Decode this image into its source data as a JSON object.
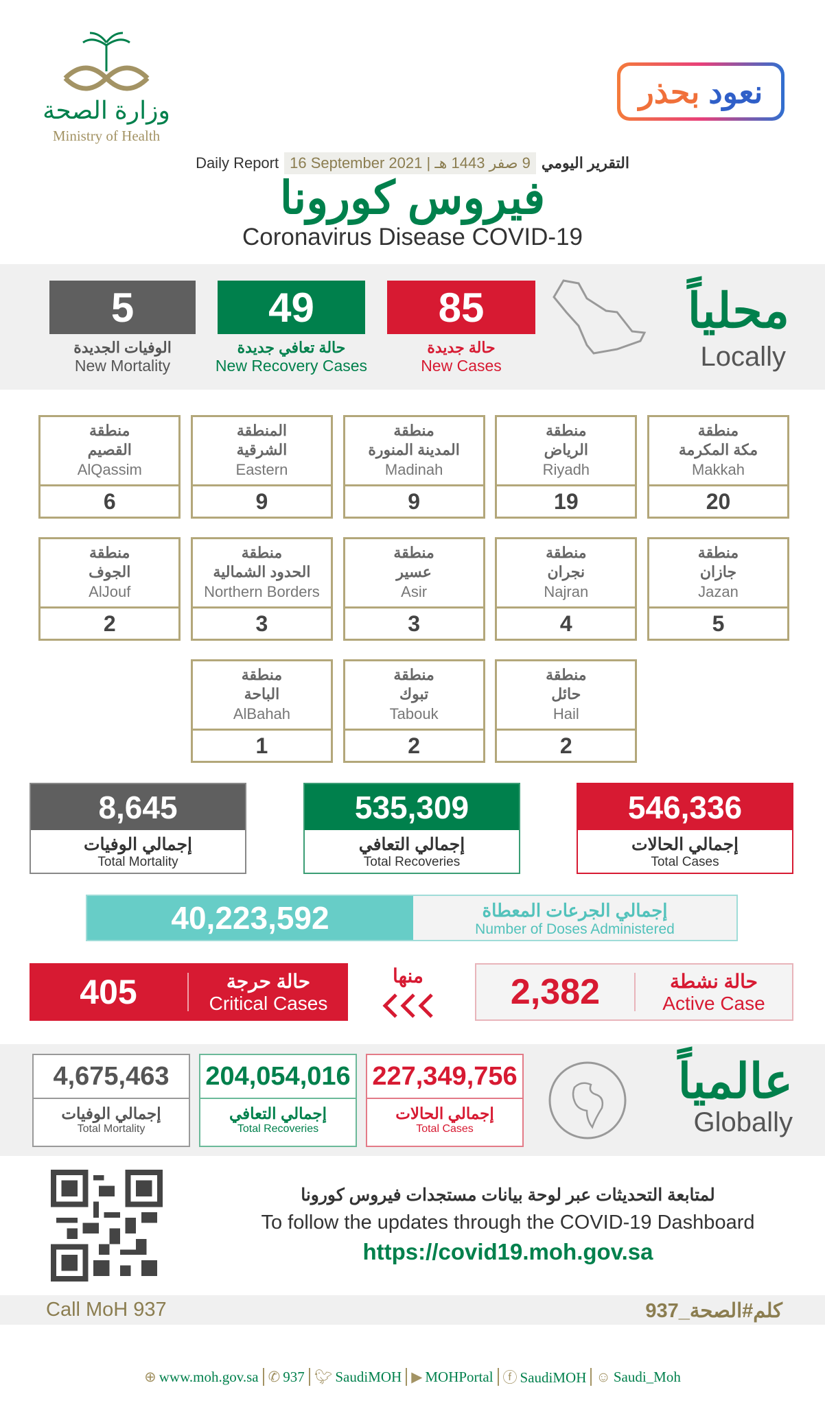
{
  "header": {
    "logo_ar": "وزارة الصحة",
    "logo_en": "Ministry of Health",
    "badge_part1": "نعود",
    "badge_part2": "بحذر",
    "daily_report_en": "Daily Report",
    "date_gregorian": "16 September 2021",
    "date_hijri": "9 صفر 1443 هـ",
    "daily_report_ar": "التقرير اليومي",
    "title_ar": "فيروس كورونا",
    "title_en": "Coronavirus Disease COVID-19"
  },
  "locally": {
    "heading_ar": "محلياً",
    "heading_en": "Locally",
    "new_mortality": {
      "value": "5",
      "label_ar": "الوفيات الجديدة",
      "label_en": "New Mortality"
    },
    "new_recovery": {
      "value": "49",
      "label_ar": "حالة تعافي جديدة",
      "label_en": "New Recovery Cases"
    },
    "new_cases": {
      "value": "85",
      "label_ar": "حالة جديدة",
      "label_en": "New Cases"
    }
  },
  "regions": [
    {
      "prefix": "منطقة",
      "name_ar": "مكة المكرمة",
      "name_en": "Makkah",
      "value": "20"
    },
    {
      "prefix": "منطقة",
      "name_ar": "الرياض",
      "name_en": "Riyadh",
      "value": "19"
    },
    {
      "prefix": "منطقة",
      "name_ar": "المدينة المنورة",
      "name_en": "Madinah",
      "value": "9"
    },
    {
      "prefix": "المنطقة",
      "name_ar": "الشرقية",
      "name_en": "Eastern",
      "value": "9"
    },
    {
      "prefix": "منطقة",
      "name_ar": "القصيم",
      "name_en": "AlQassim",
      "value": "6"
    },
    {
      "prefix": "منطقة",
      "name_ar": "جازان",
      "name_en": "Jazan",
      "value": "5"
    },
    {
      "prefix": "منطقة",
      "name_ar": "نجران",
      "name_en": "Najran",
      "value": "4"
    },
    {
      "prefix": "منطقة",
      "name_ar": "عسير",
      "name_en": "Asir",
      "value": "3"
    },
    {
      "prefix": "منطقة",
      "name_ar": "الحدود الشمالية",
      "name_en": "Northern Borders",
      "value": "3"
    },
    {
      "prefix": "منطقة",
      "name_ar": "الجوف",
      "name_en": "AlJouf",
      "value": "2"
    },
    {
      "prefix": "منطقة",
      "name_ar": "حائل",
      "name_en": "Hail",
      "value": "2"
    },
    {
      "prefix": "منطقة",
      "name_ar": "تبوك",
      "name_en": "Tabouk",
      "value": "2"
    },
    {
      "prefix": "منطقة",
      "name_ar": "الباحة",
      "name_en": "AlBahah",
      "value": "1"
    }
  ],
  "totals": {
    "mortality": {
      "value": "8,645",
      "label_ar": "إجمالي الوفيات",
      "label_en": "Total Mortality"
    },
    "recoveries": {
      "value": "535,309",
      "label_ar": "إجمالي التعافي",
      "label_en": "Total Recoveries"
    },
    "cases": {
      "value": "546,336",
      "label_ar": "إجمالي الحالات",
      "label_en": "Total Cases"
    }
  },
  "doses": {
    "value": "40,223,592",
    "label_ar": "إجمالي الجرعات المعطاة",
    "label_en": "Number of Doses Administered"
  },
  "critical": {
    "value": "405",
    "label_ar": "حالة حرجة",
    "label_en": "Critical Cases"
  },
  "of_which": "منها",
  "active": {
    "value": "2,382",
    "label_ar": "حالة نشطة",
    "label_en": "Active Case"
  },
  "globally": {
    "heading_ar": "عالمياً",
    "heading_en": "Globally",
    "mortality": {
      "value": "4,675,463",
      "label_ar": "إجمالي الوفيات",
      "label_en": "Total Mortality"
    },
    "recoveries": {
      "value": "204,054,016",
      "label_ar": "إجمالي التعافي",
      "label_en": "Total Recoveries"
    },
    "cases": {
      "value": "227,349,756",
      "label_ar": "إجمالي الحالات",
      "label_en": "Total Cases"
    }
  },
  "dashboard": {
    "text_ar": "لمتابعة التحديثات عبر لوحة بيانات مستجدات فيروس كورونا",
    "text_en": "To follow the updates through the COVID-19 Dashboard",
    "url": "https://covid19.moh.gov.sa"
  },
  "call": {
    "en": "Call MoH 937",
    "ar": "كلم#الصحة_937"
  },
  "footer": [
    {
      "icon": "globe-icon",
      "label": "www.moh.gov.sa"
    },
    {
      "icon": "phone-icon",
      "label": "937"
    },
    {
      "icon": "twitter-icon",
      "label": "SaudiMOH"
    },
    {
      "icon": "youtube-icon",
      "label": "MOHPortal"
    },
    {
      "icon": "facebook-icon",
      "label": "SaudiMOH"
    },
    {
      "icon": "snapchat-icon",
      "label": "Saudi_Moh"
    }
  ],
  "colors": {
    "red": "#d71a32",
    "green": "#00804c",
    "gray": "#5f5f5f",
    "teal": "#67cdc7",
    "gold": "#a39364"
  }
}
